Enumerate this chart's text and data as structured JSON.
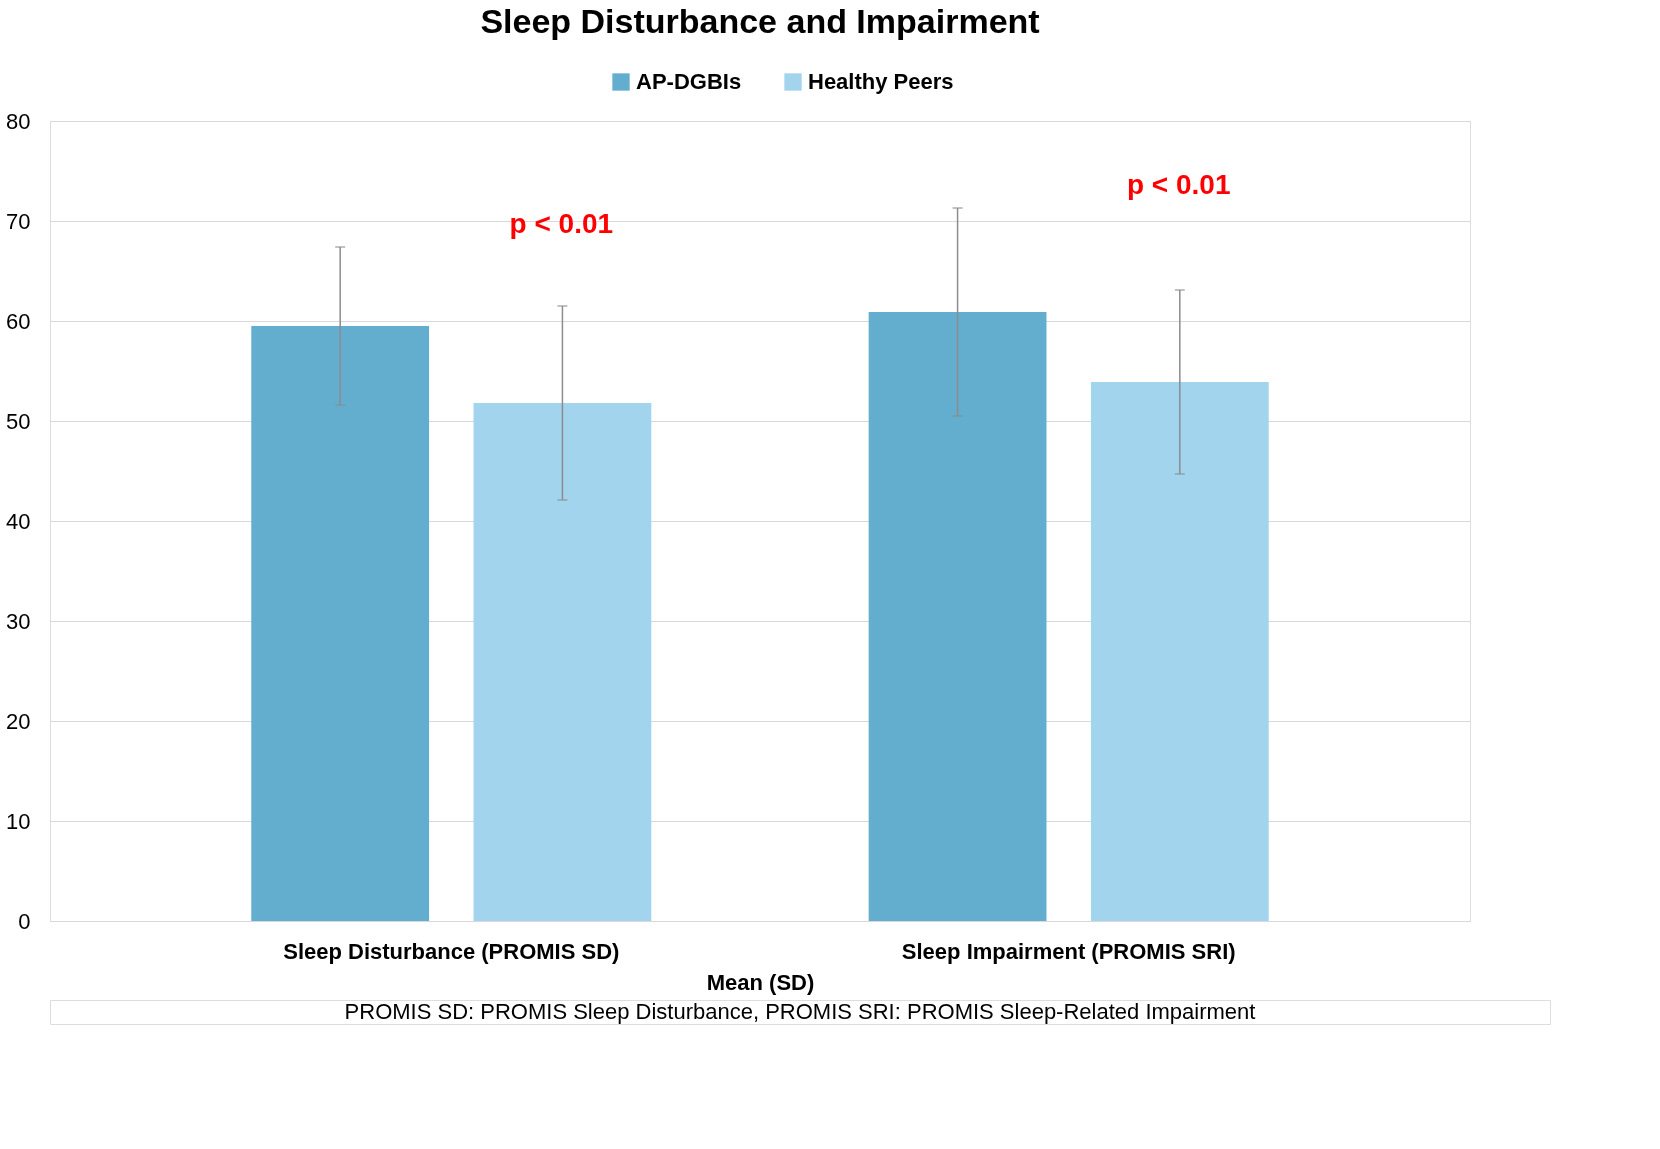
{
  "chart_data": {
    "type": "bar",
    "title": "Sleep Disturbance and Impairment",
    "categories": [
      "Sleep Disturbance (PROMIS  SD)",
      "Sleep Impairment (PROMIS  SRI)"
    ],
    "series": [
      {
        "name": "AP-DGBIs",
        "color": "#63adce",
        "values": [
          59.5,
          60.9
        ],
        "errors": [
          7.9,
          10.4
        ]
      },
      {
        "name": "Healthy Peers",
        "color": "#a3d4ee",
        "values": [
          51.8,
          53.9
        ],
        "errors": [
          9.7,
          9.2
        ]
      }
    ],
    "xlabel": "Mean (SD)",
    "ylim": [
      0,
      80
    ],
    "yticks": [
      0,
      10,
      20,
      30,
      40,
      50,
      60,
      70,
      80
    ],
    "grid": "y",
    "legend": "top",
    "annotations": [
      "p < 0.01",
      "p < 0.01",
      "PROMIS SD: PROMIS Sleep Disturbance, PROMIS SRI: PROMIS Sleep-Related Impairment"
    ]
  }
}
